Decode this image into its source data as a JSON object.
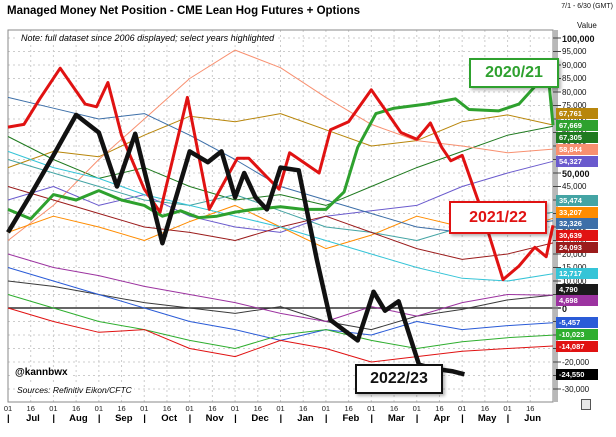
{
  "header": {
    "title": "Managed Money Net Position - CME Lean Hog Futures + Options",
    "period": "7/1 - 6/30 (GMT)"
  },
  "note": "Note: full dataset since 2006 displayed; select years highlighted",
  "footer": {
    "handle": "@kannbwx",
    "source": "Sources: Refinitiv Eikon/CFTC"
  },
  "axis": {
    "value_label": "Value",
    "y_min": -30000,
    "y_max": 100000,
    "y_step": 5000,
    "bold_tick_every": 50000,
    "day_ticks": [
      "01",
      "16"
    ],
    "months": [
      "Jul",
      "Aug",
      "Sep",
      "Oct",
      "Nov",
      "Dec",
      "Jan",
      "Feb",
      "Mar",
      "Apr",
      "May",
      "Jun"
    ]
  },
  "chart_data": {
    "type": "line",
    "title": "Managed Money Net Position - CME Lean Hog Futures + Options",
    "note": "Note: full dataset since 2006 displayed; select years highlighted",
    "xlabel": "Jul 1 - Jun 30 crop-year (twice-monthly ticks 01/16)",
    "ylabel": "Value",
    "ylim": [
      -30000,
      100000
    ],
    "grid": "dashed",
    "x_months": [
      "Jul",
      "Aug",
      "Sep",
      "Oct",
      "Nov",
      "Dec",
      "Jan",
      "Feb",
      "Mar",
      "Apr",
      "May",
      "Jun"
    ],
    "highlighted_series": [
      {
        "name": "2020/21",
        "color": "#2ea12e",
        "width": 3,
        "last_value": 67669,
        "points": [
          [
            0,
            36500
          ],
          [
            0.5,
            33000
          ],
          [
            1,
            42000
          ],
          [
            1.5,
            40000
          ],
          [
            2,
            43500
          ],
          [
            2.5,
            40000
          ],
          [
            3,
            38000
          ],
          [
            3.4,
            34000
          ],
          [
            3.8,
            36000
          ],
          [
            4.2,
            33500
          ],
          [
            4.6,
            34000
          ],
          [
            5,
            35500
          ],
          [
            5.4,
            36500
          ],
          [
            6,
            37500
          ],
          [
            6.5,
            36500
          ],
          [
            7,
            36500
          ],
          [
            7.4,
            43000
          ],
          [
            7.7,
            59500
          ],
          [
            8.1,
            72000
          ],
          [
            8.5,
            74000
          ],
          [
            9.2,
            75500
          ],
          [
            9.85,
            77500
          ],
          [
            10.15,
            73500
          ],
          [
            10.8,
            73000
          ],
          [
            11.25,
            75500
          ],
          [
            11.6,
            82000
          ],
          [
            11.9,
            85500
          ],
          [
            12,
            67669
          ]
        ]
      },
      {
        "name": "2021/22",
        "color": "#e01212",
        "width": 3,
        "last_value": 30639,
        "points": [
          [
            0,
            67000
          ],
          [
            0.35,
            68000
          ],
          [
            0.7,
            77500
          ],
          [
            1.15,
            88800
          ],
          [
            1.7,
            75500
          ],
          [
            1.95,
            74500
          ],
          [
            2.2,
            83500
          ],
          [
            2.5,
            64000
          ],
          [
            3,
            44000
          ],
          [
            3.35,
            35500
          ],
          [
            3.95,
            78000
          ],
          [
            4.43,
            36500
          ],
          [
            5.05,
            55500
          ],
          [
            5.3,
            55500
          ],
          [
            5.7,
            48500
          ],
          [
            5.97,
            44000
          ],
          [
            6.2,
            57500
          ],
          [
            6.85,
            50000
          ],
          [
            7.1,
            66000
          ],
          [
            7.5,
            69000
          ],
          [
            8,
            80800
          ],
          [
            8.65,
            65000
          ],
          [
            9,
            62500
          ],
          [
            9.3,
            68500
          ],
          [
            9.55,
            59500
          ],
          [
            9.75,
            54500
          ],
          [
            10,
            56500
          ],
          [
            10.4,
            37500
          ],
          [
            10.9,
            10500
          ],
          [
            11.25,
            15500
          ],
          [
            11.6,
            22500
          ],
          [
            11.85,
            19000
          ],
          [
            12,
            30639
          ]
        ]
      },
      {
        "name": "2022/23",
        "color": "#111111",
        "width": 4.5,
        "last_value": -24550,
        "points": [
          [
            0,
            28000
          ],
          [
            0.5,
            42000
          ],
          [
            1,
            56500
          ],
          [
            1.5,
            71500
          ],
          [
            2,
            65000
          ],
          [
            2.4,
            45000
          ],
          [
            2.8,
            64500
          ],
          [
            3.4,
            24000
          ],
          [
            4,
            58000
          ],
          [
            4.4,
            54000
          ],
          [
            4.7,
            58000
          ],
          [
            5,
            41000
          ],
          [
            5.2,
            50000
          ],
          [
            5.45,
            41000
          ],
          [
            5.7,
            36500
          ],
          [
            6,
            52000
          ],
          [
            6.4,
            51000
          ],
          [
            6.8,
            18000
          ],
          [
            7.1,
            -4500
          ],
          [
            7.7,
            -12000
          ],
          [
            8.05,
            6000
          ],
          [
            8.3,
            -1000
          ],
          [
            8.6,
            2500
          ],
          [
            9.05,
            -21000
          ],
          [
            9.4,
            -22500
          ],
          [
            9.8,
            -23500
          ],
          [
            10.05,
            -24550
          ]
        ]
      }
    ],
    "background_series": [
      {
        "end_value": 67761,
        "color": "#b8860b",
        "monthly_values": [
          52000,
          58000,
          56000,
          64000,
          71000,
          69000,
          72000,
          66000,
          60000,
          62000,
          69000,
          71500,
          67761
        ]
      },
      {
        "end_value": 67305,
        "color": "#1f7a1f",
        "monthly_values": [
          63500,
          55000,
          48000,
          52000,
          45000,
          40000,
          42000,
          38000,
          45000,
          52000,
          58000,
          64000,
          67305
        ]
      },
      {
        "end_value": 58844,
        "color": "#f89070",
        "monthly_values": [
          25000,
          38000,
          55000,
          70000,
          85000,
          95500,
          89000,
          78000,
          68000,
          62000,
          60000,
          57500,
          58844
        ]
      },
      {
        "end_value": 54327,
        "color": "#6a5acd",
        "monthly_values": [
          40000,
          45000,
          38000,
          42000,
          34000,
          30000,
          28000,
          34000,
          36000,
          38000,
          45000,
          50000,
          54327
        ]
      },
      {
        "end_value": 35474,
        "color": "#44a4a4",
        "monthly_values": [
          55000,
          50000,
          45000,
          40000,
          38000,
          42000,
          36000,
          30000,
          28000,
          25000,
          30000,
          33000,
          35474
        ]
      },
      {
        "end_value": 33207,
        "color": "#ff8c00",
        "monthly_values": [
          28000,
          34000,
          30000,
          25000,
          32000,
          38000,
          30000,
          22000,
          27000,
          34000,
          30000,
          28000,
          33207
        ]
      },
      {
        "end_value": 32326,
        "color": "#3d6fa8",
        "monthly_values": [
          78000,
          74000,
          70000,
          72000,
          64000,
          55000,
          45000,
          40000,
          35000,
          30000,
          28000,
          30000,
          32326
        ]
      },
      {
        "end_value": 24093,
        "color": "#9b1c1c",
        "monthly_values": [
          45000,
          40000,
          35000,
          30000,
          28000,
          25000,
          30000,
          34000,
          28000,
          22000,
          18000,
          20000,
          24093
        ]
      },
      {
        "end_value": 12717,
        "color": "#35c4d7",
        "monthly_values": [
          58000,
          52000,
          48000,
          42000,
          38000,
          34000,
          30000,
          25000,
          20000,
          15000,
          11000,
          10000,
          12717
        ]
      },
      {
        "end_value": 4790,
        "color": "#3a3a3a",
        "monthly_values": [
          10000,
          8000,
          5000,
          2000,
          0,
          -2000,
          500,
          -5000,
          -8000,
          -3000,
          -500,
          3000,
          4790
        ]
      },
      {
        "end_value": 4698,
        "color": "#9c33a0",
        "monthly_values": [
          20000,
          15000,
          12000,
          8000,
          5000,
          2000,
          -2000,
          -5000,
          500,
          -3000,
          2000,
          5000,
          4698
        ]
      },
      {
        "end_value": -5457,
        "color": "#2a5bd7",
        "monthly_values": [
          15000,
          10000,
          5000,
          0,
          -5000,
          -8000,
          -12000,
          -8000,
          -10000,
          -5000,
          -8000,
          -6500,
          -5457
        ]
      },
      {
        "end_value": -10023,
        "color": "#2fae2f",
        "monthly_values": [
          5000,
          0,
          -5000,
          -8000,
          -12000,
          -15000,
          -10000,
          -8000,
          -12000,
          -15000,
          -12500,
          -11000,
          -10023
        ]
      },
      {
        "end_value": -14087,
        "color": "#e01212",
        "monthly_values": [
          0,
          -5000,
          -9000,
          -8000,
          -15000,
          -18000,
          -12000,
          -15000,
          -20000,
          -18000,
          -16000,
          -15000,
          -14087
        ]
      }
    ],
    "value_badges": [
      {
        "value": 67761,
        "label": "67,761",
        "color": "#b8860b"
      },
      {
        "value": 67669,
        "label": "67,669",
        "color": "#2ea12e"
      },
      {
        "value": 67305,
        "label": "67,305",
        "color": "#1f7a1f"
      },
      {
        "value": 58844,
        "label": "58,844",
        "color": "#f89070"
      },
      {
        "value": 54327,
        "label": "54,327",
        "color": "#6a5acd"
      },
      {
        "value": 35474,
        "label": "35,474",
        "color": "#44a4a4"
      },
      {
        "value": 33207,
        "label": "33,207",
        "color": "#ff8c00"
      },
      {
        "value": 32326,
        "label": "32,326",
        "color": "#3d6fa8"
      },
      {
        "value": 30639,
        "label": "30,639",
        "color": "#e01212"
      },
      {
        "value": 24093,
        "label": "24,093",
        "color": "#9b1c1c"
      },
      {
        "value": 12717,
        "label": "12,717",
        "color": "#35c4d7"
      },
      {
        "value": 4790,
        "label": "4,790",
        "color": "#1a1a1a"
      },
      {
        "value": 4698,
        "label": "4,698",
        "color": "#9c33a0"
      },
      {
        "value": -5457,
        "label": "-5,457",
        "color": "#2a5bd7"
      },
      {
        "value": -10023,
        "label": "-10,023",
        "color": "#2fae2f"
      },
      {
        "value": -14087,
        "label": "-14,087",
        "color": "#e01212"
      },
      {
        "value": -24550,
        "label": "-24,550",
        "color": "#000000"
      }
    ]
  }
}
